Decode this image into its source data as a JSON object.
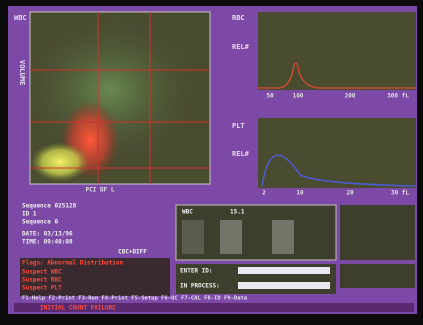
{
  "wbc": {
    "label": "WBC",
    "y_label": "VOLUME",
    "x_label": "PCI  DF L"
  },
  "rbc": {
    "label": "RBC",
    "y_label": "REL#",
    "x_ticks": [
      "50",
      "100",
      "200",
      "300 fL"
    ]
  },
  "plt": {
    "label": "PLT",
    "y_label": "REL#",
    "x_ticks": [
      "2",
      "10",
      "20",
      "30 fL"
    ]
  },
  "info": {
    "lines": [
      "Sequence 025128",
      "ID 1",
      "Sequence 0",
      "DATE: 03/13/96",
      "TIME: 09:40:08"
    ],
    "mode": "CBC+DIFF"
  },
  "alerts": [
    "Flags: Abnormal Distribution",
    "Suspect WBC",
    "Suspect RBC",
    "Suspect PLT"
  ],
  "wbc_box": {
    "title": "WBC",
    "value": "15.1"
  },
  "entry": {
    "enter_id": "ENTER ID:",
    "in_process": "IN PROCESS:"
  },
  "menu": "F1-Help F2-Print F3-Run F4-Print F5-Setup F6-QC F7-CAL F8-ID F9-Data",
  "status": "INITIAL COUNT FAILURE"
}
